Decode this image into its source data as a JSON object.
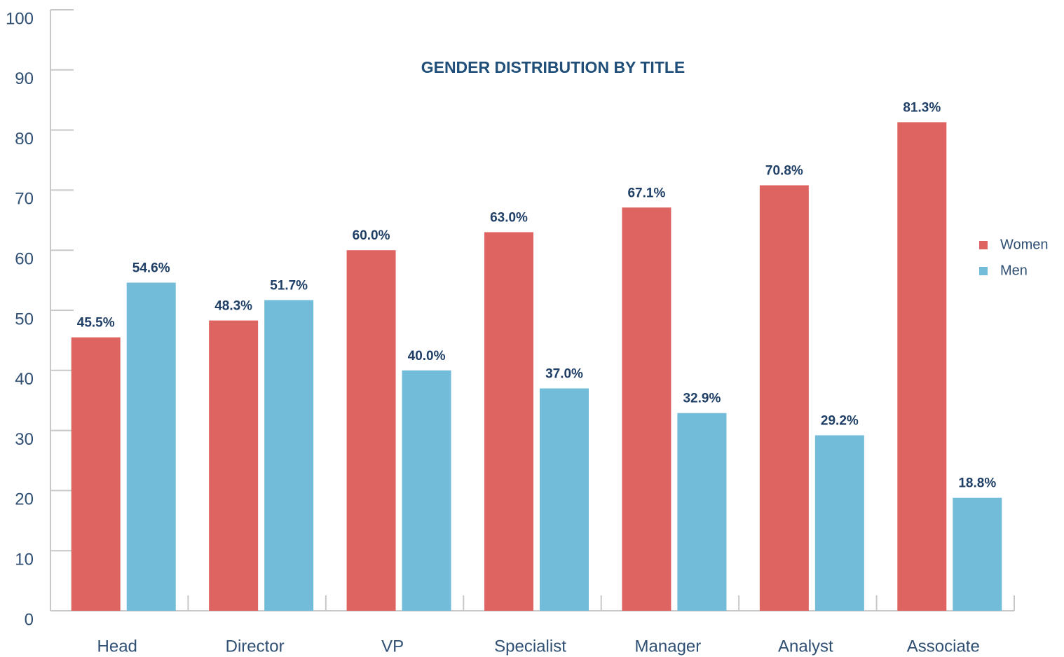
{
  "chart_data": {
    "type": "bar",
    "title": "GENDER DISTRIBUTION BY TITLE",
    "categories": [
      "Head",
      "Director",
      "VP",
      "Specialist",
      "Manager",
      "Analyst",
      "Associate"
    ],
    "series": [
      {
        "name": "Women",
        "color": "#dd6461",
        "values": [
          45.5,
          48.3,
          60.0,
          63.0,
          67.1,
          70.8,
          81.3
        ],
        "value_labels": [
          "45.5%",
          "48.3%",
          "60.0%",
          "63.0%",
          "67.1%",
          "70.8%",
          "81.3%"
        ]
      },
      {
        "name": "Men",
        "color": "#72bbd9",
        "values": [
          54.6,
          51.7,
          40.0,
          37.0,
          32.9,
          29.2,
          18.8
        ],
        "value_labels": [
          "54.6%",
          "51.7%",
          "40.0%",
          "37.0%",
          "32.9%",
          "29.2%",
          "18.8%"
        ]
      }
    ],
    "ylim": [
      0,
      100
    ],
    "yticks": [
      0,
      10,
      20,
      30,
      40,
      50,
      60,
      70,
      80,
      90,
      100
    ],
    "grid": false,
    "legend": "right"
  }
}
